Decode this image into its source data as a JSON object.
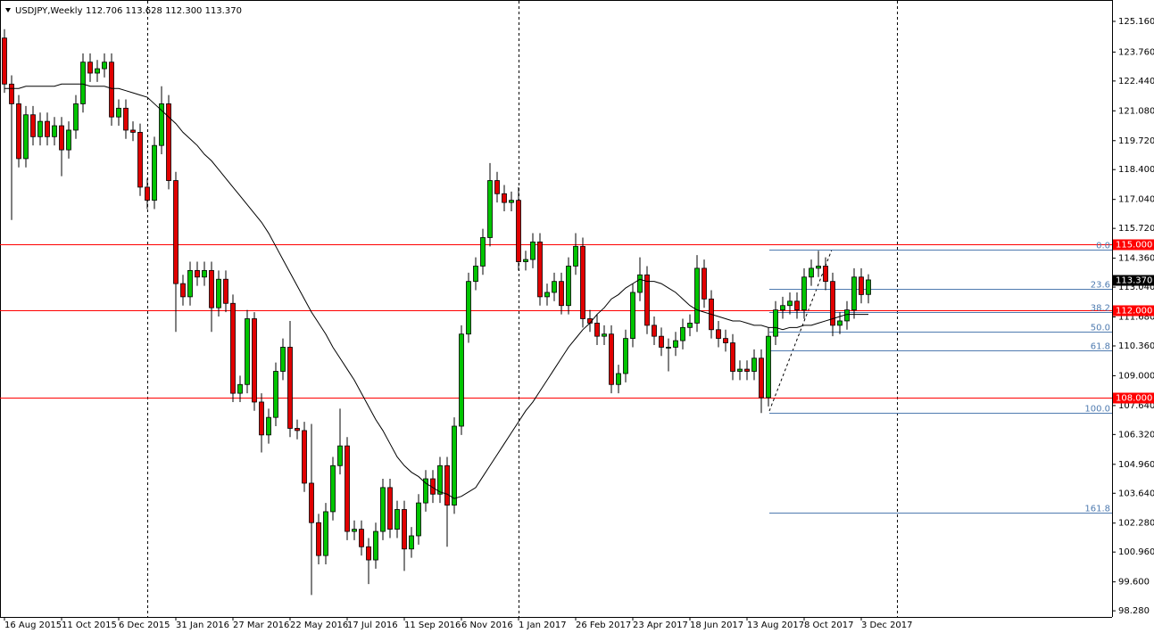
{
  "chart_data": {
    "type": "candlestick",
    "header": {
      "symbol": "USDJPY,Weekly",
      "ohlc": "112.706 113.628 112.300 113.370"
    },
    "categories": [
      "16 Aug 2015",
      null,
      null,
      null,
      null,
      null,
      null,
      null,
      "11 Oct 2015",
      null,
      null,
      null,
      null,
      null,
      null,
      null,
      "6 Dec 2015",
      null,
      null,
      null,
      null,
      null,
      null,
      null,
      "31 Jan 2016",
      null,
      null,
      null,
      null,
      null,
      null,
      null,
      "27 Mar 2016",
      null,
      null,
      null,
      null,
      null,
      null,
      null,
      "22 May 2016",
      null,
      null,
      null,
      null,
      null,
      null,
      null,
      "17 Jul 2016",
      null,
      null,
      null,
      null,
      null,
      null,
      null,
      "11 Sep 2016",
      null,
      null,
      null,
      null,
      null,
      null,
      null,
      "6 Nov 2016",
      null,
      null,
      null,
      null,
      null,
      null,
      null,
      "1 Jan 2017",
      null,
      null,
      null,
      null,
      null,
      null,
      null,
      "26 Feb 2017",
      null,
      null,
      null,
      null,
      null,
      null,
      null,
      "23 Apr 2017",
      null,
      null,
      null,
      null,
      null,
      null,
      null,
      "18 Jun 2017",
      null,
      null,
      null,
      null,
      null,
      null,
      null,
      "13 Aug 2017",
      null,
      null,
      null,
      null,
      null,
      null,
      null,
      "8 Oct 2017",
      null,
      null,
      null,
      null,
      null,
      null,
      null,
      "3 Dec 2017",
      null
    ],
    "open": [
      124.4,
      122.3,
      121.4,
      118.9,
      120.9,
      119.9,
      120.6,
      119.9,
      120.4,
      119.3,
      120.2,
      121.4,
      123.3,
      122.8,
      123.0,
      123.3,
      120.8,
      121.2,
      120.2,
      120.1,
      117.6,
      117.0,
      119.5,
      121.4,
      117.9,
      113.2,
      112.6,
      113.8,
      113.5,
      113.8,
      112.1,
      113.4,
      112.3,
      108.2,
      108.6,
      111.6,
      107.8,
      106.3,
      107.1,
      109.2,
      110.3,
      106.6,
      106.5,
      104.1,
      102.3,
      100.8,
      102.8,
      104.9,
      105.8,
      101.9,
      102.0,
      101.2,
      100.6,
      101.9,
      103.9,
      102.0,
      102.9,
      101.1,
      101.7,
      103.2,
      104.3,
      103.6,
      104.9,
      103.1,
      106.7,
      110.9,
      113.3,
      114.0,
      115.3,
      117.9,
      117.3,
      116.9,
      117.0,
      114.2,
      114.3,
      115.1,
      112.6,
      112.8,
      113.3,
      112.2,
      114.0,
      114.9,
      111.6,
      111.4,
      110.8,
      110.9,
      108.6,
      109.1,
      110.7,
      112.8,
      113.6,
      111.3,
      110.8,
      110.3,
      110.3,
      110.6,
      111.2,
      111.4,
      113.9,
      112.5,
      111.1,
      110.7,
      110.5,
      109.2,
      109.3,
      109.2,
      109.8,
      108.0,
      110.8,
      112.0,
      112.2,
      112.4,
      112.0,
      113.5,
      113.9,
      114.0,
      113.3,
      111.3,
      111.5,
      112.0,
      113.5,
      112.706
    ],
    "high": [
      124.8,
      122.7,
      121.8,
      121.3,
      121.3,
      121.0,
      121.0,
      120.8,
      120.8,
      120.6,
      121.8,
      123.7,
      123.7,
      123.4,
      123.7,
      123.7,
      121.6,
      121.6,
      120.6,
      120.5,
      118.0,
      119.9,
      122.2,
      121.8,
      118.3,
      113.6,
      114.2,
      114.2,
      114.2,
      114.2,
      113.8,
      113.8,
      112.7,
      109.0,
      112.0,
      111.9,
      108.2,
      107.5,
      109.6,
      110.7,
      111.5,
      107.0,
      106.9,
      106.8,
      102.7,
      103.2,
      105.3,
      107.5,
      106.2,
      102.4,
      102.4,
      101.6,
      102.3,
      104.3,
      104.3,
      103.3,
      103.3,
      102.1,
      103.6,
      104.7,
      104.7,
      105.3,
      105.3,
      107.1,
      111.3,
      113.7,
      114.4,
      115.7,
      118.7,
      118.3,
      117.7,
      117.4,
      117.6,
      114.7,
      115.5,
      115.5,
      113.2,
      113.7,
      113.7,
      114.4,
      115.5,
      115.3,
      112.0,
      111.8,
      111.3,
      111.3,
      109.5,
      111.1,
      113.2,
      114.4,
      114.0,
      111.7,
      111.2,
      110.7,
      111.0,
      111.6,
      111.8,
      114.5,
      114.3,
      112.9,
      111.5,
      111.1,
      110.9,
      109.7,
      109.7,
      110.2,
      110.2,
      111.2,
      112.4,
      112.6,
      112.8,
      112.8,
      113.9,
      114.3,
      114.7,
      114.4,
      113.7,
      111.9,
      112.4,
      113.9,
      113.9,
      113.628
    ],
    "low": [
      121.9,
      116.1,
      118.5,
      118.5,
      119.5,
      119.5,
      119.5,
      119.5,
      118.1,
      118.9,
      119.8,
      121.0,
      122.4,
      122.4,
      122.6,
      120.4,
      120.4,
      119.8,
      119.7,
      117.2,
      116.6,
      116.6,
      119.1,
      117.5,
      111.0,
      112.2,
      112.2,
      113.1,
      113.1,
      111.0,
      111.7,
      111.9,
      107.8,
      107.8,
      108.2,
      107.4,
      105.5,
      105.9,
      106.7,
      108.8,
      106.2,
      106.1,
      103.7,
      99.0,
      100.4,
      100.4,
      102.4,
      104.5,
      101.5,
      101.5,
      100.8,
      99.5,
      100.2,
      101.5,
      101.6,
      101.6,
      100.1,
      100.7,
      101.3,
      102.8,
      103.2,
      103.2,
      101.2,
      102.7,
      106.3,
      110.5,
      112.9,
      113.6,
      114.9,
      116.9,
      116.5,
      116.5,
      113.8,
      113.8,
      113.9,
      112.2,
      112.2,
      112.4,
      111.8,
      111.8,
      113.6,
      111.2,
      111.0,
      110.4,
      110.4,
      108.2,
      108.2,
      108.7,
      110.3,
      112.4,
      110.9,
      110.4,
      109.9,
      109.2,
      109.9,
      110.2,
      110.8,
      111.0,
      112.1,
      110.7,
      110.3,
      110.1,
      108.8,
      108.8,
      108.8,
      108.8,
      107.3,
      107.6,
      110.4,
      111.6,
      111.8,
      111.6,
      111.6,
      113.1,
      113.5,
      112.9,
      110.8,
      110.9,
      111.1,
      111.6,
      112.3,
      112.3
    ],
    "close": [
      122.3,
      121.4,
      118.9,
      120.9,
      119.9,
      120.6,
      119.9,
      120.4,
      119.3,
      120.2,
      121.4,
      123.3,
      122.8,
      123.0,
      123.3,
      120.8,
      121.2,
      120.2,
      120.1,
      117.6,
      117.0,
      119.5,
      121.4,
      117.9,
      113.2,
      112.6,
      113.8,
      113.5,
      113.8,
      112.1,
      113.4,
      112.3,
      108.2,
      108.6,
      111.6,
      107.8,
      106.3,
      107.1,
      109.2,
      110.3,
      106.6,
      106.5,
      104.1,
      102.3,
      100.8,
      102.8,
      104.9,
      105.8,
      101.9,
      102.0,
      101.2,
      100.6,
      101.9,
      103.9,
      102.0,
      102.9,
      101.1,
      101.7,
      103.2,
      104.3,
      103.6,
      104.9,
      103.1,
      106.7,
      110.9,
      113.3,
      114.0,
      115.3,
      117.9,
      117.3,
      116.9,
      117.0,
      114.2,
      114.3,
      115.1,
      112.6,
      112.8,
      113.3,
      112.2,
      114.0,
      114.9,
      111.6,
      111.4,
      110.8,
      110.9,
      108.6,
      109.1,
      110.7,
      112.8,
      113.6,
      111.3,
      110.8,
      110.3,
      110.3,
      110.6,
      111.2,
      111.4,
      113.9,
      112.5,
      111.1,
      110.7,
      110.5,
      109.2,
      109.3,
      109.2,
      109.8,
      108.0,
      110.8,
      112.0,
      112.2,
      112.4,
      112.0,
      113.5,
      113.9,
      114.0,
      113.3,
      111.3,
      111.5,
      112.0,
      113.5,
      112.7,
      113.37
    ],
    "colors": {
      "up": "#00c400",
      "down": "#e00000",
      "outline": "#000000",
      "level": "#ff0000",
      "fibonacci": "#4f7bb0"
    },
    "moving_average": {
      "color": "#000000",
      "values": [
        122.1,
        122.1,
        122.1,
        122.2,
        122.2,
        122.2,
        122.2,
        122.2,
        122.3,
        122.3,
        122.3,
        122.3,
        122.2,
        122.2,
        122.2,
        122.1,
        122.1,
        122.0,
        121.9,
        121.8,
        121.7,
        121.4,
        121.1,
        120.8,
        120.5,
        120.1,
        119.8,
        119.5,
        119.1,
        118.8,
        118.4,
        118.0,
        117.6,
        117.2,
        116.8,
        116.4,
        116.0,
        115.5,
        114.9,
        114.3,
        113.7,
        113.1,
        112.5,
        111.9,
        111.4,
        110.9,
        110.3,
        109.8,
        109.3,
        108.8,
        108.2,
        107.6,
        107.0,
        106.5,
        105.9,
        105.3,
        104.9,
        104.6,
        104.4,
        104.1,
        103.9,
        103.7,
        103.6,
        103.4,
        103.5,
        103.7,
        103.9,
        104.4,
        104.9,
        105.4,
        105.9,
        106.4,
        106.9,
        107.4,
        107.8,
        108.3,
        108.8,
        109.3,
        109.8,
        110.3,
        110.7,
        111.1,
        111.4,
        111.8,
        112.1,
        112.5,
        112.7,
        113.0,
        113.2,
        113.4,
        113.3,
        113.3,
        113.2,
        113.0,
        112.8,
        112.5,
        112.2,
        112.0,
        111.9,
        111.8,
        111.7,
        111.6,
        111.5,
        111.5,
        111.4,
        111.3,
        111.3,
        111.2,
        111.2,
        111.1,
        111.2,
        111.2,
        111.3,
        111.3,
        111.4,
        111.5,
        111.6,
        111.7,
        111.8,
        111.8,
        111.8,
        111.8
      ]
    },
    "ylim": [
      98.0,
      125.89
    ],
    "yticks": [
      {
        "value": 125.16,
        "label": "125.160"
      },
      {
        "value": 123.76,
        "label": "123.760"
      },
      {
        "value": 122.44,
        "label": "122.440"
      },
      {
        "value": 121.08,
        "label": "121.080"
      },
      {
        "value": 119.72,
        "label": "119.720"
      },
      {
        "value": 118.4,
        "label": "118.400"
      },
      {
        "value": 117.04,
        "label": "117.040"
      },
      {
        "value": 115.72,
        "label": "115.720"
      },
      {
        "value": 114.36,
        "label": "114.360"
      },
      {
        "value": 113.04,
        "label": "113.040"
      },
      {
        "value": 111.68,
        "label": "111.680"
      },
      {
        "value": 110.36,
        "label": "110.360"
      },
      {
        "value": 109.0,
        "label": "109.000"
      },
      {
        "value": 107.64,
        "label": "107.640"
      },
      {
        "value": 106.32,
        "label": "106.320"
      },
      {
        "value": 104.96,
        "label": "104.960"
      },
      {
        "value": 103.64,
        "label": "103.640"
      },
      {
        "value": 102.28,
        "label": "102.280"
      },
      {
        "value": 100.96,
        "label": "100.960"
      },
      {
        "value": 99.6,
        "label": "99.600"
      },
      {
        "value": 98.28,
        "label": "98.280"
      }
    ],
    "levels": [
      {
        "value": 115.0,
        "label": "115.000"
      },
      {
        "value": 112.0,
        "label": "112.000"
      },
      {
        "value": 108.0,
        "label": "108.000"
      }
    ],
    "fibonacci": [
      {
        "value": 114.73,
        "label": "0.0"
      },
      {
        "value": 112.98,
        "label": "23.6"
      },
      {
        "value": 111.9,
        "label": "38.2"
      },
      {
        "value": 111.03,
        "label": "50.0"
      },
      {
        "value": 110.15,
        "label": "61.8"
      },
      {
        "value": 107.32,
        "label": "100.0"
      },
      {
        "value": 102.74,
        "label": "161.8"
      }
    ],
    "current": {
      "value": 113.37,
      "label": "113.370"
    }
  }
}
